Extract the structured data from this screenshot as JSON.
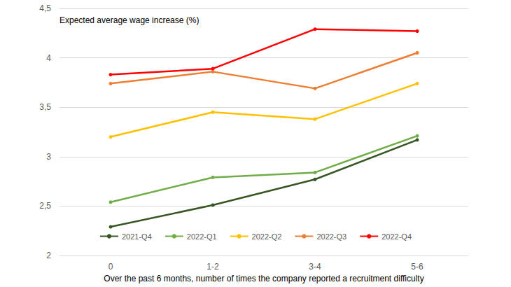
{
  "chart_data": {
    "type": "line",
    "title": "Expected average wage increase (%)",
    "x_label": "Over the past 6 months, number of times the company reported a recruitment difficulty",
    "categories": [
      "0",
      "1-2",
      "3-4",
      "5-6"
    ],
    "series": [
      {
        "name": "2021-Q4",
        "color": "#375623",
        "values": [
          2.29,
          2.51,
          2.77,
          3.17
        ]
      },
      {
        "name": "2022-Q1",
        "color": "#70ad47",
        "values": [
          2.54,
          2.79,
          2.84,
          3.21
        ]
      },
      {
        "name": "2022-Q2",
        "color": "#ffc000",
        "values": [
          3.2,
          3.45,
          3.38,
          3.74
        ]
      },
      {
        "name": "2022-Q3",
        "color": "#ed7d31",
        "values": [
          3.74,
          3.86,
          3.69,
          4.05
        ]
      },
      {
        "name": "2022-Q4",
        "color": "#ff0000",
        "values": [
          3.83,
          3.89,
          4.29,
          4.27
        ]
      }
    ],
    "ylim": [
      2,
      4.5
    ],
    "yticks": [
      2,
      {
        "value": 2.5,
        "label": "2,5"
      },
      3,
      {
        "value": 3.5,
        "label": "3,5"
      },
      4,
      {
        "value": 4.5,
        "label": "4,5"
      }
    ],
    "grid": true,
    "legend": "bottom",
    "marker": "circle"
  }
}
